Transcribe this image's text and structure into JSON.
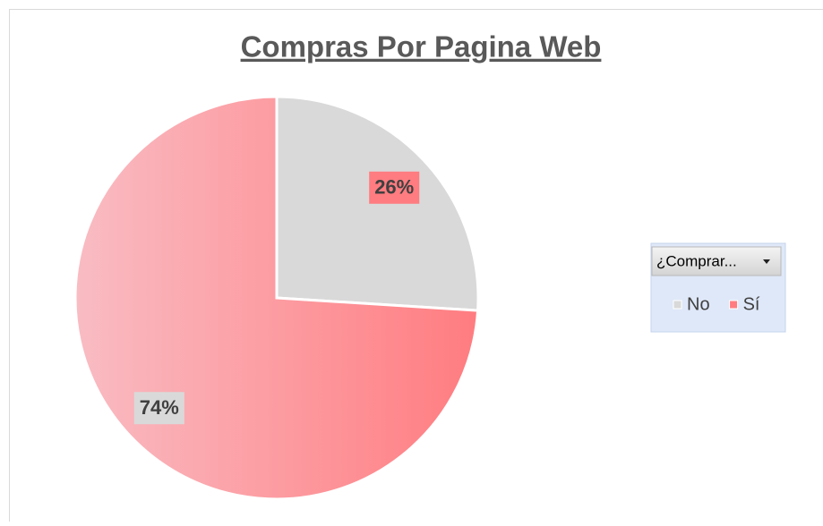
{
  "chart_data": {
    "type": "pie",
    "title": "Compras Por Pagina Web",
    "legend_title": "¿Comprar...",
    "categories": [
      "No",
      "Sí"
    ],
    "values": [
      26,
      74
    ],
    "value_labels": [
      "26%",
      "74%"
    ],
    "colors": [
      "#d9d9d9",
      "#ff7c80"
    ],
    "legend": "right"
  }
}
